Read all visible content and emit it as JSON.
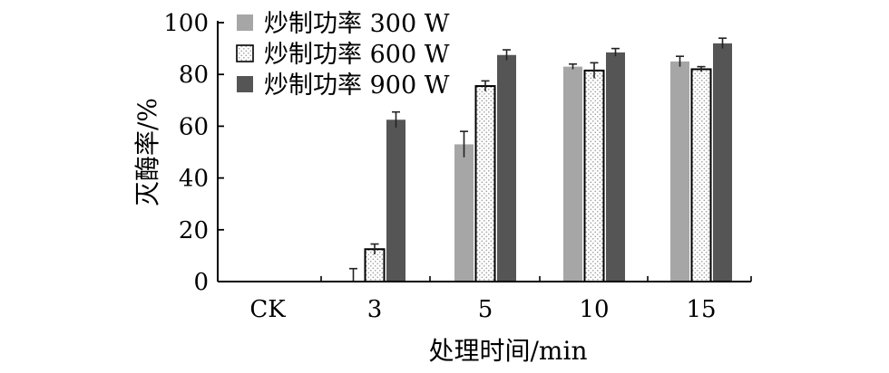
{
  "chart_data": {
    "type": "bar",
    "categories": [
      "CK",
      "3",
      "5",
      "10",
      "15"
    ],
    "series": [
      {
        "name": "炒制功率 300 W",
        "color": "#a6a6a6",
        "pattern": "solid",
        "values": [
          0,
          0,
          53,
          83,
          85
        ],
        "errors": [
          0,
          5,
          5,
          1,
          2
        ]
      },
      {
        "name": "炒制功率 600 W",
        "color": "#ffffff",
        "pattern": "dots",
        "values": [
          0,
          12.5,
          75.5,
          81.5,
          82
        ],
        "errors": [
          0,
          2,
          2,
          3,
          1
        ]
      },
      {
        "name": "炒制功率 900 W",
        "color": "#555555",
        "pattern": "solid",
        "values": [
          0,
          62.5,
          87.5,
          88.5,
          92
        ],
        "errors": [
          0,
          3,
          2,
          1.5,
          2
        ]
      }
    ],
    "xlabel": "处理时间/min",
    "ylabel": "灭酶率/%",
    "ylim": [
      0,
      100
    ],
    "yticks": [
      0,
      20,
      40,
      60,
      80,
      100
    ],
    "grid": false,
    "legend": "top-left"
  }
}
